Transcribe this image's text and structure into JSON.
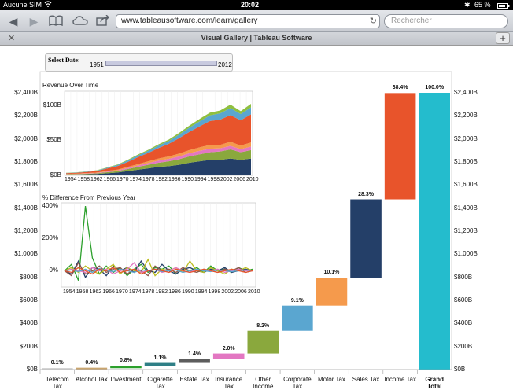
{
  "status": {
    "carrier": "Aucune SIM",
    "time": "20:02",
    "battery": "65 %"
  },
  "browser": {
    "url": "www.tableausoftware.com/learn/gallery",
    "search_placeholder": "Rechercher",
    "tab_title": "Visual Gallery | Tableau Software",
    "icons": [
      "back-icon",
      "forward-icon",
      "bookmarks-icon",
      "icloud-icon",
      "share-icon",
      "reload-icon",
      "close-tab-icon",
      "new-tab-icon"
    ]
  },
  "filter": {
    "label": "Select Date:",
    "from": "1951",
    "to": "2012"
  },
  "chart_data": [
    {
      "type": "bar",
      "subtype": "waterfall",
      "categories": [
        "Telecom Tax",
        "Alcohol Tax",
        "Investment",
        "Cigarette Tax",
        "Estate Tax",
        "Insurance Tax",
        "Other Income",
        "Corporate Tax",
        "Motor Tax",
        "Sales Tax",
        "Income Tax",
        "Grand Total"
      ],
      "category_labels": [
        [
          "Telecom Tax"
        ],
        [
          "Alcohol Tax"
        ],
        [
          "Investment"
        ],
        [
          "Cigarette",
          "Tax"
        ],
        [
          "Estate Tax"
        ],
        [
          "Insurance",
          "Tax"
        ],
        [
          "Other",
          "Income"
        ],
        [
          "Corporate",
          "Tax"
        ],
        [
          "Motor Tax"
        ],
        [
          "Sales Tax"
        ],
        [
          "Income Tax"
        ],
        [
          "Grand Total"
        ]
      ],
      "percent_labels": [
        "0.1%",
        "0.4%",
        "0.8%",
        "1.1%",
        "1.4%",
        "2.0%",
        "8.2%",
        "9.1%",
        "10.1%",
        "28.3%",
        "38.4%",
        "100.0%"
      ],
      "percent_values": [
        0.1,
        0.4,
        0.8,
        1.1,
        1.4,
        2.0,
        8.2,
        9.1,
        10.1,
        28.3,
        38.4,
        100.0
      ],
      "colors": [
        "#d4d4d4",
        "#c9a56e",
        "#2ca02c",
        "#2f7f86",
        "#5d5d5d",
        "#e377c2",
        "#8aa83d",
        "#5aa6d0",
        "#f59a4c",
        "#243f68",
        "#e8542b",
        "#24bccd"
      ],
      "total": 2400,
      "y_unit": "B",
      "y_ticks": [
        "$0B",
        "$200B",
        "$400B",
        "$600B",
        "$800B",
        "$1,000B",
        "$1,200B",
        "$1,400B",
        "$1,600B",
        "$1,800B",
        "$2,000B",
        "$2,200B",
        "$2,400B"
      ],
      "ylim": [
        0,
        2400
      ]
    },
    {
      "type": "area",
      "title": "Revenue Over Time",
      "x_ticks": [
        "1954",
        "1958",
        "1962",
        "1966",
        "1970",
        "1974",
        "1978",
        "1982",
        "1986",
        "1990",
        "1994",
        "1998",
        "2002",
        "2006",
        "2010"
      ],
      "y_ticks": [
        "$0B",
        "$50B",
        "$100B"
      ],
      "ylim": [
        0,
        120
      ],
      "x_range": [
        1951,
        2012
      ],
      "series": [
        {
          "color": "#243f68",
          "values": [
            1,
            1.2,
            1.5,
            2,
            3,
            4,
            6,
            8,
            10,
            12,
            13,
            15,
            18,
            20,
            22,
            22,
            24,
            22,
            24
          ]
        },
        {
          "color": "#8aa83d",
          "values": [
            0.5,
            0.6,
            0.8,
            1,
            1.5,
            2,
            3,
            4,
            5,
            6,
            7,
            8,
            9,
            10,
            11,
            12,
            13,
            11,
            12
          ]
        },
        {
          "color": "#e377c2",
          "values": [
            0.3,
            0.3,
            0.4,
            0.5,
            0.8,
            1,
            1.5,
            2,
            2.5,
            3,
            3.5,
            4,
            4.5,
            5,
            5,
            4.5,
            5,
            4.5,
            5
          ]
        },
        {
          "color": "#f59a4c",
          "values": [
            0.3,
            0.4,
            0.5,
            0.6,
            1,
            1.2,
            1.6,
            2,
            2.5,
            3,
            3.5,
            4,
            4.5,
            5,
            5.5,
            5,
            6,
            5,
            6
          ]
        },
        {
          "color": "#e8542b",
          "values": [
            1,
            1.2,
            1.6,
            2.2,
            3.5,
            5,
            7,
            10,
            12,
            15,
            18,
            22,
            26,
            30,
            34,
            36,
            38,
            36,
            40
          ]
        },
        {
          "color": "#5aa6d0",
          "values": [
            0.3,
            0.4,
            0.5,
            0.6,
            1,
            1.5,
            2,
            2.5,
            3,
            3.5,
            4,
            5,
            6,
            7,
            8,
            9,
            10,
            9,
            10
          ]
        },
        {
          "color": "#8fbf3f",
          "values": [
            0.2,
            0.2,
            0.3,
            0.4,
            0.5,
            0.7,
            1,
            1.2,
            1.5,
            1.8,
            2,
            2.5,
            3,
            3.5,
            4,
            4,
            5,
            4,
            5
          ]
        }
      ]
    },
    {
      "type": "line",
      "title": "% Difference From Previous Year",
      "x_ticks": [
        "1954",
        "1958",
        "1962",
        "1966",
        "1970",
        "1974",
        "1978",
        "1982",
        "1986",
        "1990",
        "1994",
        "1998",
        "2002",
        "2006",
        "2010"
      ],
      "y_ticks": [
        "0%",
        "200%",
        "400%"
      ],
      "ylim": [
        -100,
        420
      ],
      "series": [
        {
          "color": "#2ca02c",
          "values": [
            0,
            40,
            -60,
            400,
            80,
            -20,
            30,
            -10,
            20,
            -30,
            10,
            40,
            -10,
            20,
            10,
            30,
            -20,
            10,
            0,
            20,
            -10,
            30,
            0,
            10,
            -10,
            20,
            0,
            10
          ]
        },
        {
          "color": "#243f68",
          "values": [
            0,
            -20,
            60,
            -40,
            20,
            10,
            -30,
            30,
            0,
            20,
            -10,
            60,
            0,
            -10,
            40,
            0,
            -20,
            10,
            20,
            0,
            -10,
            10,
            0,
            20,
            -10,
            0,
            10,
            0
          ]
        },
        {
          "color": "#bcbd22",
          "values": [
            0,
            20,
            -10,
            30,
            0,
            -20,
            10,
            40,
            -20,
            20,
            0,
            -10,
            70,
            -30,
            10,
            0,
            20,
            -10,
            60,
            0,
            -10,
            20,
            0,
            -20,
            10,
            0,
            20,
            0
          ]
        },
        {
          "color": "#8c564b",
          "values": [
            0,
            -30,
            50,
            -20,
            0,
            30,
            -10,
            10,
            20,
            -20,
            10,
            0,
            -30,
            30,
            0,
            10,
            -10,
            20,
            0,
            -10,
            10,
            0,
            -10,
            10,
            0,
            20,
            -10,
            0
          ]
        },
        {
          "color": "#e377c2",
          "values": [
            0,
            10,
            0,
            -10,
            20,
            0,
            10,
            -20,
            0,
            10,
            50,
            -10,
            0,
            10,
            -10,
            0,
            20,
            0,
            -10,
            10,
            0,
            0,
            10,
            -10,
            0,
            10,
            0,
            0
          ]
        },
        {
          "color": "#5aa6d0",
          "values": [
            0,
            5,
            -5,
            10,
            -10,
            15,
            0,
            -5,
            10,
            0,
            -10,
            5,
            0,
            10,
            -5,
            0,
            5,
            -10,
            0,
            10,
            0,
            -5,
            5,
            0,
            -5,
            0,
            5,
            0
          ]
        },
        {
          "color": "#e8542b",
          "values": [
            0,
            -10,
            20,
            0,
            -20,
            10,
            0,
            20,
            -10,
            0,
            10,
            -20,
            0,
            10,
            0,
            -10,
            10,
            0,
            -10,
            0,
            10,
            0,
            -10,
            0,
            10,
            0,
            -10,
            0
          ]
        }
      ]
    }
  ]
}
